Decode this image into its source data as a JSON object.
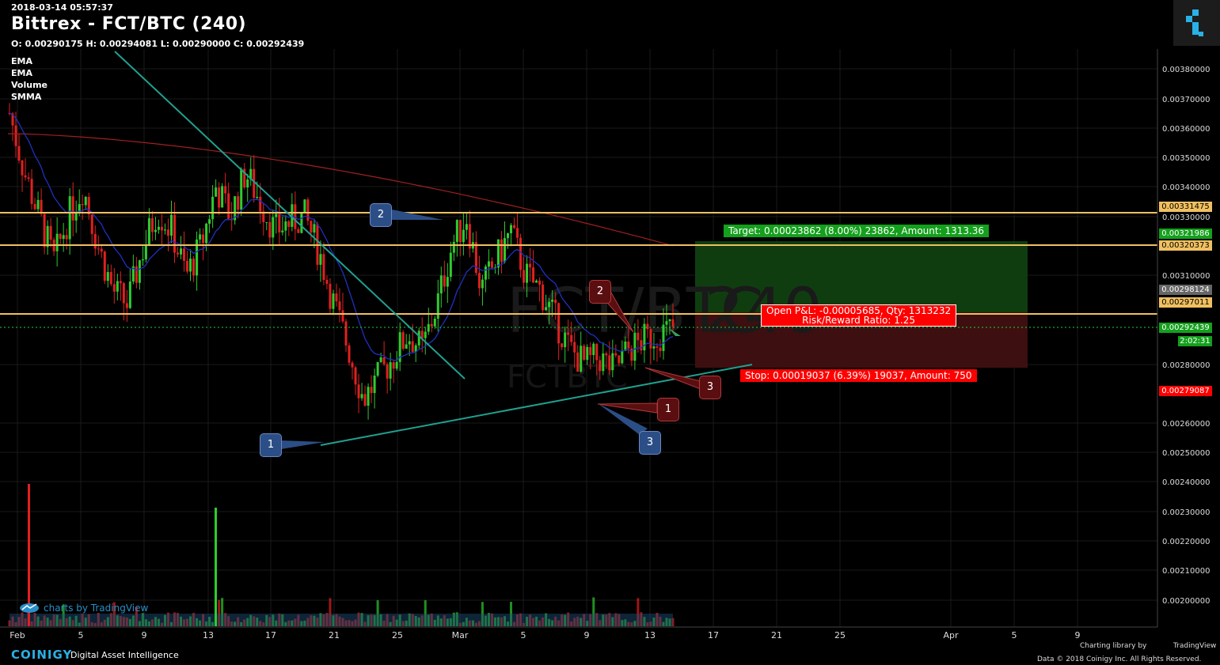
{
  "header": {
    "timestamp": "2018-03-14 05:57:37",
    "title": "Bittrex - FCT/BTC (240)",
    "ohlc": "O: 0.00290175 H: 0.00294081 L: 0.00290000 C: 0.00292439"
  },
  "indicators": [
    "EMA",
    "EMA",
    "Volume",
    "SMMA"
  ],
  "watermark": {
    "pair": "FCT/BTC",
    "interval": "240",
    "symbol": "FCTBTC"
  },
  "price_axis": [
    "0.00380000",
    "0.00370000",
    "0.00360000",
    "0.00350000",
    "0.00340000",
    "0.00330000",
    "0.00310000",
    "0.00280000",
    "0.00260000",
    "0.00250000",
    "0.00240000",
    "0.00230000",
    "0.00220000",
    "0.00210000",
    "0.00200000"
  ],
  "price_labels": {
    "level1": "0.00331475",
    "target": "0.00321986",
    "level2": "0.00320373",
    "marker": "0.00298124",
    "level3": "0.00297011",
    "current": "0.00292439",
    "countdown": "2:02:31",
    "stop": "0.00279087"
  },
  "time_axis": [
    "Feb",
    "5",
    "9",
    "13",
    "17",
    "21",
    "25",
    "Mar",
    "5",
    "9",
    "13",
    "17",
    "21",
    "25",
    "Apr",
    "5",
    "9"
  ],
  "position": {
    "target_text": "Target: 0.00023862 (8.00%) 23862, Amount: 1313.36",
    "pnl_line1": "Open P&L: -0.00005685, Qty: 1313232",
    "pnl_line2": "Risk/Reward Ratio: 1.25",
    "stop_text": "Stop: 0.00019037 (6.39%) 19037, Amount: 750"
  },
  "callouts": [
    "1",
    "2",
    "1",
    "2",
    "3",
    "3"
  ],
  "footer": {
    "tv_credit": "charts by TradingView",
    "brand": "COINIGY",
    "brand_tagline": "Digital Asset Intelligence",
    "lib_text": "Charting library by",
    "lib_name": "TradingView",
    "copyright": "Data © 2018   Coinigy Inc. All Rights Reserved."
  },
  "colors": {
    "background": "#000000",
    "up_candle": "#2ecc2e",
    "down_candle": "#e02020",
    "level_line": "#f0c060",
    "trend_line": "#20a090",
    "ema_fast": "#2030c0",
    "smma": "#a02020",
    "target_zone": "#0f3d10",
    "stop_zone": "#3d0f10"
  },
  "chart_data": {
    "type": "candlestick",
    "price_range": [
      0.00195,
      0.00386
    ],
    "horizontal_levels": [
      0.00331475,
      0.00320373,
      0.00297011
    ],
    "current_price": 0.00292439,
    "candles_approx_close": [
      0.00365,
      0.00345,
      0.0033,
      0.00315,
      0.0033,
      0.0034,
      0.0032,
      0.00305,
      0.003,
      0.00318,
      0.00332,
      0.00325,
      0.0031,
      0.0032,
      0.0034,
      0.0033,
      0.00345,
      0.00335,
      0.00325,
      0.00328,
      0.0033,
      0.00318,
      0.003,
      0.00285,
      0.00268,
      0.00275,
      0.00282,
      0.0029,
      0.00285,
      0.003,
      0.0032,
      0.0033,
      0.00305,
      0.00315,
      0.00325,
      0.0031,
      0.00305,
      0.00295,
      0.00285,
      0.0028,
      0.00282,
      0.00278,
      0.00285,
      0.00288,
      0.0029,
      0.00292
    ]
  }
}
